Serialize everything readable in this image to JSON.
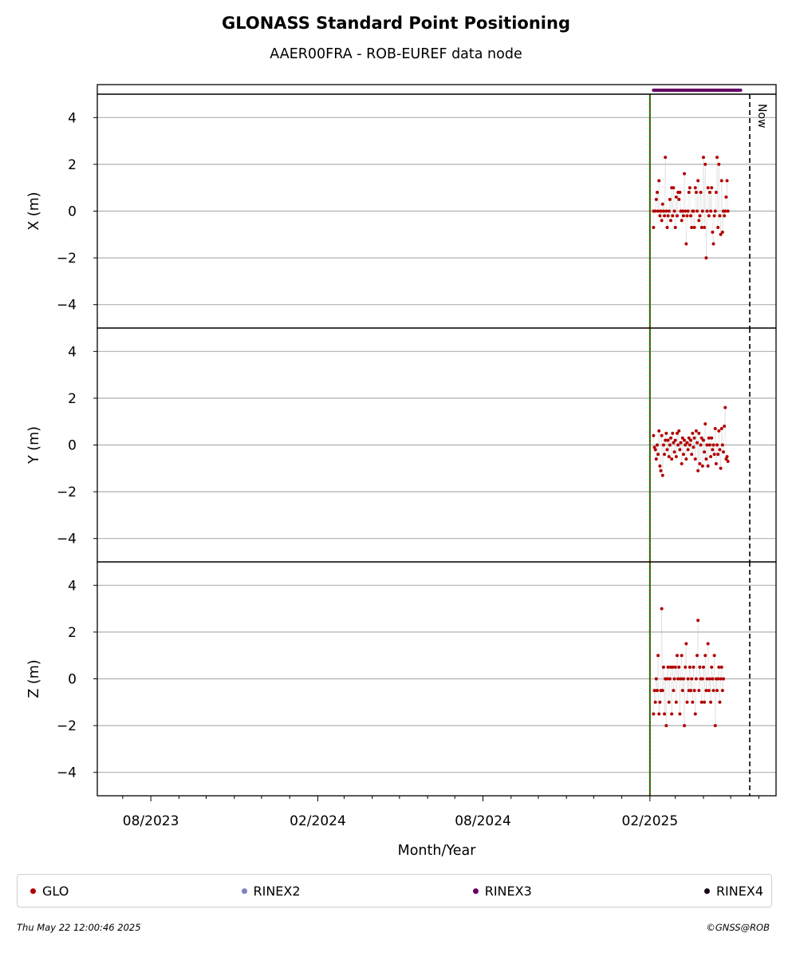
{
  "title": "GLONASS Standard Point Positioning",
  "subtitle": "AAER00FRA - ROB-EUREF data node",
  "now_label": "Now",
  "legend": [
    {
      "label": "GLO",
      "color": "#b30000"
    },
    {
      "label": "RINEX2",
      "color": "#8080c0"
    },
    {
      "label": "RINEX3",
      "color": "#660066"
    },
    {
      "label": "RINEX4",
      "color": "#1a0019"
    }
  ],
  "footer": {
    "timestamp": "Thu May 22 12:00:46 2025",
    "credit": "©GNSS@ROB"
  },
  "chart_data": {
    "type": "scatter",
    "xlabel": "Month/Year",
    "x_range": [
      "2023-06-03",
      "2025-06-20"
    ],
    "x_ticks": [
      {
        "date": "2023-08-01",
        "label": "08/2023"
      },
      {
        "date": "2024-02-01",
        "label": "02/2024"
      },
      {
        "date": "2024-08-01",
        "label": "08/2024"
      },
      {
        "date": "2025-02-01",
        "label": "02/2025"
      }
    ],
    "x_minor_ticks": [
      "2023-06-01",
      "2023-07-01",
      "2023-09-01",
      "2023-10-01",
      "2023-11-01",
      "2023-12-01",
      "2024-01-01",
      "2024-03-01",
      "2024-04-01",
      "2024-05-01",
      "2024-06-01",
      "2024-07-01",
      "2024-09-01",
      "2024-10-01",
      "2024-11-01",
      "2024-12-01",
      "2025-01-01",
      "2025-03-01",
      "2025-04-01",
      "2025-05-01",
      "2025-06-01"
    ],
    "now_date": "2025-05-22",
    "start_line_date": "2025-02-01",
    "rinex3_range": [
      "2025-02-05",
      "2025-05-12"
    ],
    "y_ticks": [
      4,
      2,
      0,
      -2,
      -4
    ],
    "ylim": [
      -5,
      5
    ],
    "panels": [
      {
        "ylabel": "X (m)",
        "points": [
          [
            "2025-02-05",
            -0.7
          ],
          [
            "2025-02-05",
            0.0
          ],
          [
            "2025-02-07",
            0.0
          ],
          [
            "2025-02-08",
            0.5
          ],
          [
            "2025-02-09",
            0.8
          ],
          [
            "2025-02-10",
            0.0
          ],
          [
            "2025-02-11",
            1.3
          ],
          [
            "2025-02-12",
            -0.2
          ],
          [
            "2025-02-13",
            0.0
          ],
          [
            "2025-02-14",
            -0.4
          ],
          [
            "2025-02-15",
            0.3
          ],
          [
            "2025-02-16",
            0.0
          ],
          [
            "2025-02-17",
            -0.2
          ],
          [
            "2025-02-18",
            2.3
          ],
          [
            "2025-02-19",
            0.0
          ],
          [
            "2025-02-20",
            -0.7
          ],
          [
            "2025-02-21",
            -0.2
          ],
          [
            "2025-02-22",
            0.0
          ],
          [
            "2025-02-23",
            0.5
          ],
          [
            "2025-02-24",
            -0.4
          ],
          [
            "2025-02-25",
            1.0
          ],
          [
            "2025-02-26",
            -0.2
          ],
          [
            "2025-02-27",
            1.0
          ],
          [
            "2025-02-28",
            0.0
          ],
          [
            "2025-03-01",
            -0.7
          ],
          [
            "2025-03-02",
            0.6
          ],
          [
            "2025-03-03",
            -0.2
          ],
          [
            "2025-03-04",
            0.8
          ],
          [
            "2025-03-05",
            0.5
          ],
          [
            "2025-03-06",
            0.8
          ],
          [
            "2025-03-07",
            0.0
          ],
          [
            "2025-03-08",
            -0.4
          ],
          [
            "2025-03-09",
            0.0
          ],
          [
            "2025-03-10",
            -0.2
          ],
          [
            "2025-03-11",
            1.6
          ],
          [
            "2025-03-12",
            0.0
          ],
          [
            "2025-03-13",
            -1.4
          ],
          [
            "2025-03-14",
            -0.2
          ],
          [
            "2025-03-15",
            0.0
          ],
          [
            "2025-03-16",
            0.8
          ],
          [
            "2025-03-17",
            1.0
          ],
          [
            "2025-03-18",
            -0.2
          ],
          [
            "2025-03-19",
            -0.7
          ],
          [
            "2025-03-20",
            0.0
          ],
          [
            "2025-03-21",
            0.0
          ],
          [
            "2025-03-22",
            -0.7
          ],
          [
            "2025-03-23",
            1.0
          ],
          [
            "2025-03-24",
            0.8
          ],
          [
            "2025-03-25",
            0.0
          ],
          [
            "2025-03-26",
            1.3
          ],
          [
            "2025-03-27",
            -0.4
          ],
          [
            "2025-03-28",
            -0.2
          ],
          [
            "2025-03-29",
            0.8
          ],
          [
            "2025-03-30",
            -0.7
          ],
          [
            "2025-03-31",
            0.0
          ],
          [
            "2025-04-01",
            2.3
          ],
          [
            "2025-04-02",
            -0.7
          ],
          [
            "2025-04-03",
            2.0
          ],
          [
            "2025-04-04",
            -2.0
          ],
          [
            "2025-04-05",
            0.0
          ],
          [
            "2025-04-06",
            1.0
          ],
          [
            "2025-04-07",
            -0.2
          ],
          [
            "2025-04-08",
            0.8
          ],
          [
            "2025-04-09",
            0.0
          ],
          [
            "2025-04-10",
            1.0
          ],
          [
            "2025-04-11",
            -0.9
          ],
          [
            "2025-04-12",
            -1.4
          ],
          [
            "2025-04-13",
            -0.2
          ],
          [
            "2025-04-14",
            0.0
          ],
          [
            "2025-04-15",
            0.8
          ],
          [
            "2025-04-16",
            2.3
          ],
          [
            "2025-04-17",
            -0.7
          ],
          [
            "2025-04-18",
            2.0
          ],
          [
            "2025-04-19",
            -0.2
          ],
          [
            "2025-04-20",
            -1.0
          ],
          [
            "2025-04-21",
            1.3
          ],
          [
            "2025-04-22",
            -0.9
          ],
          [
            "2025-04-23",
            0.0
          ],
          [
            "2025-04-24",
            -0.2
          ],
          [
            "2025-04-25",
            0.0
          ],
          [
            "2025-04-26",
            0.6
          ],
          [
            "2025-04-27",
            1.3
          ],
          [
            "2025-04-28",
            0.0
          ]
        ]
      },
      {
        "ylabel": "Y (m)",
        "points": [
          [
            "2025-02-05",
            0.4
          ],
          [
            "2025-02-06",
            -0.1
          ],
          [
            "2025-02-07",
            -0.2
          ],
          [
            "2025-02-08",
            -0.6
          ],
          [
            "2025-02-09",
            0.0
          ],
          [
            "2025-02-10",
            -0.4
          ],
          [
            "2025-02-11",
            0.6
          ],
          [
            "2025-02-12",
            -0.9
          ],
          [
            "2025-02-13",
            -1.1
          ],
          [
            "2025-02-14",
            0.4
          ],
          [
            "2025-02-15",
            -1.3
          ],
          [
            "2025-02-16",
            0.0
          ],
          [
            "2025-02-17",
            -0.4
          ],
          [
            "2025-02-18",
            0.2
          ],
          [
            "2025-02-19",
            0.5
          ],
          [
            "2025-02-20",
            -0.2
          ],
          [
            "2025-02-21",
            0.2
          ],
          [
            "2025-02-22",
            -0.5
          ],
          [
            "2025-02-23",
            0.0
          ],
          [
            "2025-02-24",
            0.3
          ],
          [
            "2025-02-25",
            -0.6
          ],
          [
            "2025-02-26",
            0.5
          ],
          [
            "2025-02-27",
            0.1
          ],
          [
            "2025-02-28",
            -0.3
          ],
          [
            "2025-03-01",
            0.2
          ],
          [
            "2025-03-02",
            -0.5
          ],
          [
            "2025-03-03",
            0.5
          ],
          [
            "2025-03-04",
            0.0
          ],
          [
            "2025-03-05",
            0.6
          ],
          [
            "2025-03-06",
            -0.2
          ],
          [
            "2025-03-07",
            0.1
          ],
          [
            "2025-03-08",
            -0.8
          ],
          [
            "2025-03-09",
            0.3
          ],
          [
            "2025-03-10",
            -0.4
          ],
          [
            "2025-03-11",
            0.2
          ],
          [
            "2025-03-12",
            0.0
          ],
          [
            "2025-03-13",
            -0.6
          ],
          [
            "2025-03-14",
            0.1
          ],
          [
            "2025-03-15",
            -0.2
          ],
          [
            "2025-03-16",
            0.3
          ],
          [
            "2025-03-17",
            0.0
          ],
          [
            "2025-03-18",
            0.2
          ],
          [
            "2025-03-19",
            -0.4
          ],
          [
            "2025-03-20",
            0.5
          ],
          [
            "2025-03-21",
            -0.1
          ],
          [
            "2025-03-22",
            0.3
          ],
          [
            "2025-03-23",
            -0.6
          ],
          [
            "2025-03-24",
            0.6
          ],
          [
            "2025-03-25",
            0.1
          ],
          [
            "2025-03-26",
            -1.1
          ],
          [
            "2025-03-27",
            0.5
          ],
          [
            "2025-03-28",
            -0.8
          ],
          [
            "2025-03-29",
            0.0
          ],
          [
            "2025-03-30",
            0.3
          ],
          [
            "2025-03-31",
            -0.9
          ],
          [
            "2025-04-01",
            0.2
          ],
          [
            "2025-04-02",
            -0.3
          ],
          [
            "2025-04-03",
            0.9
          ],
          [
            "2025-04-04",
            -0.6
          ],
          [
            "2025-04-05",
            0.0
          ],
          [
            "2025-04-06",
            -0.9
          ],
          [
            "2025-04-07",
            0.3
          ],
          [
            "2025-04-08",
            0.0
          ],
          [
            "2025-04-09",
            -0.5
          ],
          [
            "2025-04-10",
            0.3
          ],
          [
            "2025-04-11",
            -0.2
          ],
          [
            "2025-04-12",
            0.0
          ],
          [
            "2025-04-13",
            -0.4
          ],
          [
            "2025-04-14",
            0.7
          ],
          [
            "2025-04-15",
            -0.8
          ],
          [
            "2025-04-16",
            0.0
          ],
          [
            "2025-04-17",
            -0.4
          ],
          [
            "2025-04-18",
            0.6
          ],
          [
            "2025-04-19",
            -0.2
          ],
          [
            "2025-04-20",
            -1.0
          ],
          [
            "2025-04-21",
            0.7
          ],
          [
            "2025-04-22",
            0.0
          ],
          [
            "2025-04-23",
            -0.3
          ],
          [
            "2025-04-24",
            0.8
          ],
          [
            "2025-04-25",
            1.6
          ],
          [
            "2025-04-26",
            -0.6
          ],
          [
            "2025-04-27",
            -0.5
          ],
          [
            "2025-04-28",
            -0.7
          ]
        ]
      },
      {
        "ylabel": "Z (m)",
        "points": [
          [
            "2025-02-05",
            -1.5
          ],
          [
            "2025-02-06",
            -0.5
          ],
          [
            "2025-02-07",
            -1.0
          ],
          [
            "2025-02-08",
            0.0
          ],
          [
            "2025-02-09",
            -0.5
          ],
          [
            "2025-02-10",
            1.0
          ],
          [
            "2025-02-11",
            -1.5
          ],
          [
            "2025-02-12",
            -1.0
          ],
          [
            "2025-02-13",
            -0.5
          ],
          [
            "2025-02-14",
            3.0
          ],
          [
            "2025-02-15",
            -0.5
          ],
          [
            "2025-02-16",
            0.5
          ],
          [
            "2025-02-17",
            -1.5
          ],
          [
            "2025-02-18",
            0.0
          ],
          [
            "2025-02-19",
            -2.0
          ],
          [
            "2025-02-20",
            0.0
          ],
          [
            "2025-02-21",
            0.5
          ],
          [
            "2025-02-22",
            -1.0
          ],
          [
            "2025-02-23",
            0.0
          ],
          [
            "2025-02-24",
            0.5
          ],
          [
            "2025-02-25",
            -1.5
          ],
          [
            "2025-02-26",
            0.5
          ],
          [
            "2025-02-27",
            -0.5
          ],
          [
            "2025-02-28",
            0.0
          ],
          [
            "2025-03-01",
            0.5
          ],
          [
            "2025-03-02",
            -1.0
          ],
          [
            "2025-03-03",
            1.0
          ],
          [
            "2025-03-04",
            0.0
          ],
          [
            "2025-03-05",
            0.5
          ],
          [
            "2025-03-06",
            -1.5
          ],
          [
            "2025-03-07",
            0.0
          ],
          [
            "2025-03-08",
            1.0
          ],
          [
            "2025-03-09",
            -0.5
          ],
          [
            "2025-03-10",
            0.0
          ],
          [
            "2025-03-11",
            -2.0
          ],
          [
            "2025-03-12",
            0.5
          ],
          [
            "2025-03-13",
            1.5
          ],
          [
            "2025-03-14",
            -1.0
          ],
          [
            "2025-03-15",
            0.0
          ],
          [
            "2025-03-16",
            -0.5
          ],
          [
            "2025-03-17",
            0.5
          ],
          [
            "2025-03-18",
            -0.5
          ],
          [
            "2025-03-19",
            0.0
          ],
          [
            "2025-03-20",
            -1.0
          ],
          [
            "2025-03-21",
            0.5
          ],
          [
            "2025-03-22",
            -0.5
          ],
          [
            "2025-03-23",
            -1.5
          ],
          [
            "2025-03-24",
            0.0
          ],
          [
            "2025-03-25",
            1.0
          ],
          [
            "2025-03-26",
            2.5
          ],
          [
            "2025-03-27",
            -0.5
          ],
          [
            "2025-03-28",
            0.5
          ],
          [
            "2025-03-29",
            0.0
          ],
          [
            "2025-03-30",
            -1.0
          ],
          [
            "2025-03-31",
            0.0
          ],
          [
            "2025-04-01",
            0.5
          ],
          [
            "2025-04-02",
            -1.0
          ],
          [
            "2025-04-03",
            1.0
          ],
          [
            "2025-04-04",
            -0.5
          ],
          [
            "2025-04-05",
            0.0
          ],
          [
            "2025-04-06",
            1.5
          ],
          [
            "2025-04-07",
            -0.5
          ],
          [
            "2025-04-08",
            0.0
          ],
          [
            "2025-04-09",
            -1.0
          ],
          [
            "2025-04-10",
            0.5
          ],
          [
            "2025-04-11",
            0.0
          ],
          [
            "2025-04-12",
            -0.5
          ],
          [
            "2025-04-13",
            1.0
          ],
          [
            "2025-04-14",
            -2.0
          ],
          [
            "2025-04-15",
            0.0
          ],
          [
            "2025-04-16",
            -0.5
          ],
          [
            "2025-04-17",
            0.0
          ],
          [
            "2025-04-18",
            0.5
          ],
          [
            "2025-04-19",
            -1.0
          ],
          [
            "2025-04-20",
            0.0
          ],
          [
            "2025-04-21",
            0.5
          ],
          [
            "2025-04-22",
            -0.5
          ],
          [
            "2025-04-23",
            0.0
          ]
        ]
      }
    ]
  }
}
